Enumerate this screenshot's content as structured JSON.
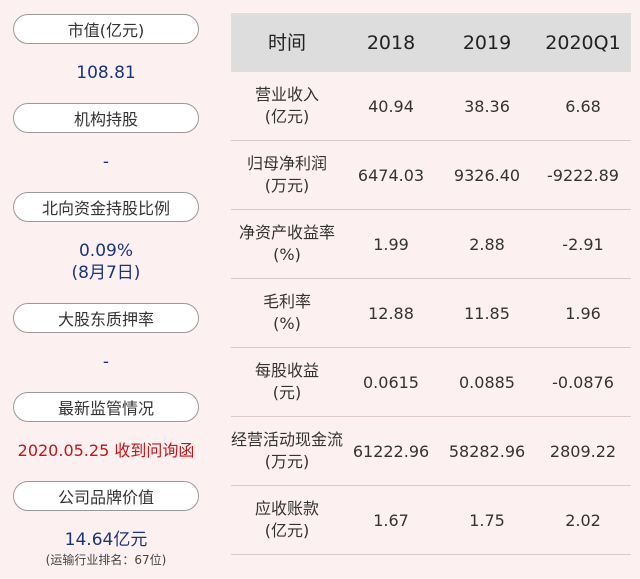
{
  "left": {
    "items": [
      {
        "label": "市值(亿元)",
        "value": "108.81"
      },
      {
        "label": "机构持股",
        "value": "-"
      },
      {
        "label": "北向资金持股比例",
        "value": "0.09%",
        "value2": "(8月7日)"
      },
      {
        "label": "大股东质押率",
        "value": "-"
      },
      {
        "label": "最新监管情况",
        "value": "2020.05.25 收到问询函"
      },
      {
        "label": "公司品牌价值",
        "value": "14.64亿元",
        "note": "(运输行业排名：67位)"
      }
    ]
  },
  "table": {
    "headers": [
      "时间",
      "2018",
      "2019",
      "2020Q1"
    ],
    "rows": [
      {
        "name1": "营业收入",
        "name2": "(亿元)",
        "v": [
          "40.94",
          "38.36",
          "6.68"
        ]
      },
      {
        "name1": "归母净利润",
        "name2": "(万元)",
        "v": [
          "6474.03",
          "9326.40",
          "-9222.89"
        ]
      },
      {
        "name1": "净资产收益率",
        "name2": "(%)",
        "v": [
          "1.99",
          "2.88",
          "-2.91"
        ]
      },
      {
        "name1": "毛利率",
        "name2": "(%)",
        "v": [
          "12.88",
          "11.85",
          "1.96"
        ]
      },
      {
        "name1": "每股收益",
        "name2": "(元)",
        "v": [
          "0.0615",
          "0.0885",
          "-0.0876"
        ]
      },
      {
        "name1": "经营活动现金流",
        "name2": "(万元)",
        "v": [
          "61222.96",
          "58282.96",
          "2809.22"
        ]
      },
      {
        "name1": "应收账款",
        "name2": "(亿元)",
        "v": [
          "1.67",
          "1.75",
          "2.02"
        ]
      }
    ]
  }
}
